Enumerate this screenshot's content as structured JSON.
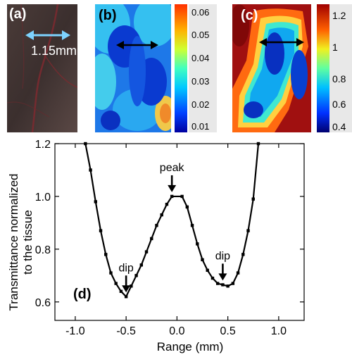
{
  "panels": {
    "a": {
      "label": "(a)",
      "scale_text": "1.15mm",
      "scale_color": "#7dd3ff"
    },
    "b": {
      "label": "(b)",
      "colorbar": {
        "ticks": [
          "0.06",
          "0.05",
          "0.04",
          "0.03",
          "0.02",
          "0.01"
        ]
      }
    },
    "c": {
      "label": "(c)",
      "colorbar": {
        "ticks": [
          "1.2",
          "1",
          "0.8",
          "0.6",
          "0.4"
        ]
      }
    }
  },
  "chart_data": {
    "type": "line",
    "panel_label": "(d)",
    "xlabel": "Range (mm)",
    "ylabel": [
      "Transmittance normalized",
      "to the tissue"
    ],
    "xlim": [
      -1.2,
      1.25
    ],
    "ylim": [
      0.53,
      1.2
    ],
    "xticks": [
      -1.0,
      -0.5,
      0.0,
      0.5,
      1.0
    ],
    "yticks": [
      0.6,
      0.8,
      1.0,
      1.2
    ],
    "xtick_labels": [
      "-1.0",
      "-0.5",
      "0.0",
      "0.5",
      "1.0"
    ],
    "ytick_labels": [
      "0.6",
      "0.8",
      "1.0",
      "1.2"
    ],
    "series": [
      {
        "x": [
          -0.9,
          -0.85,
          -0.8,
          -0.75,
          -0.7,
          -0.65,
          -0.6,
          -0.55,
          -0.5,
          -0.45,
          -0.4,
          -0.35,
          -0.3,
          -0.25,
          -0.2,
          -0.15,
          -0.1,
          -0.05,
          0.05,
          0.1,
          0.15,
          0.2,
          0.25,
          0.3,
          0.35,
          0.4,
          0.45,
          0.5,
          0.55,
          0.6,
          0.65,
          0.7,
          0.75,
          0.8
        ],
        "y": [
          1.2,
          1.1,
          0.98,
          0.87,
          0.78,
          0.71,
          0.67,
          0.64,
          0.62,
          0.66,
          0.7,
          0.74,
          0.79,
          0.84,
          0.89,
          0.93,
          0.97,
          1.0,
          1.0,
          0.96,
          0.89,
          0.82,
          0.76,
          0.72,
          0.69,
          0.67,
          0.665,
          0.66,
          0.67,
          0.71,
          0.78,
          0.87,
          0.99,
          1.2
        ]
      }
    ],
    "annotations": [
      {
        "text": "peak",
        "x": -0.05,
        "y": 1.0
      },
      {
        "text": "dip",
        "x": -0.5,
        "y": 0.62
      },
      {
        "text": "dip",
        "x": 0.45,
        "y": 0.665
      }
    ]
  }
}
